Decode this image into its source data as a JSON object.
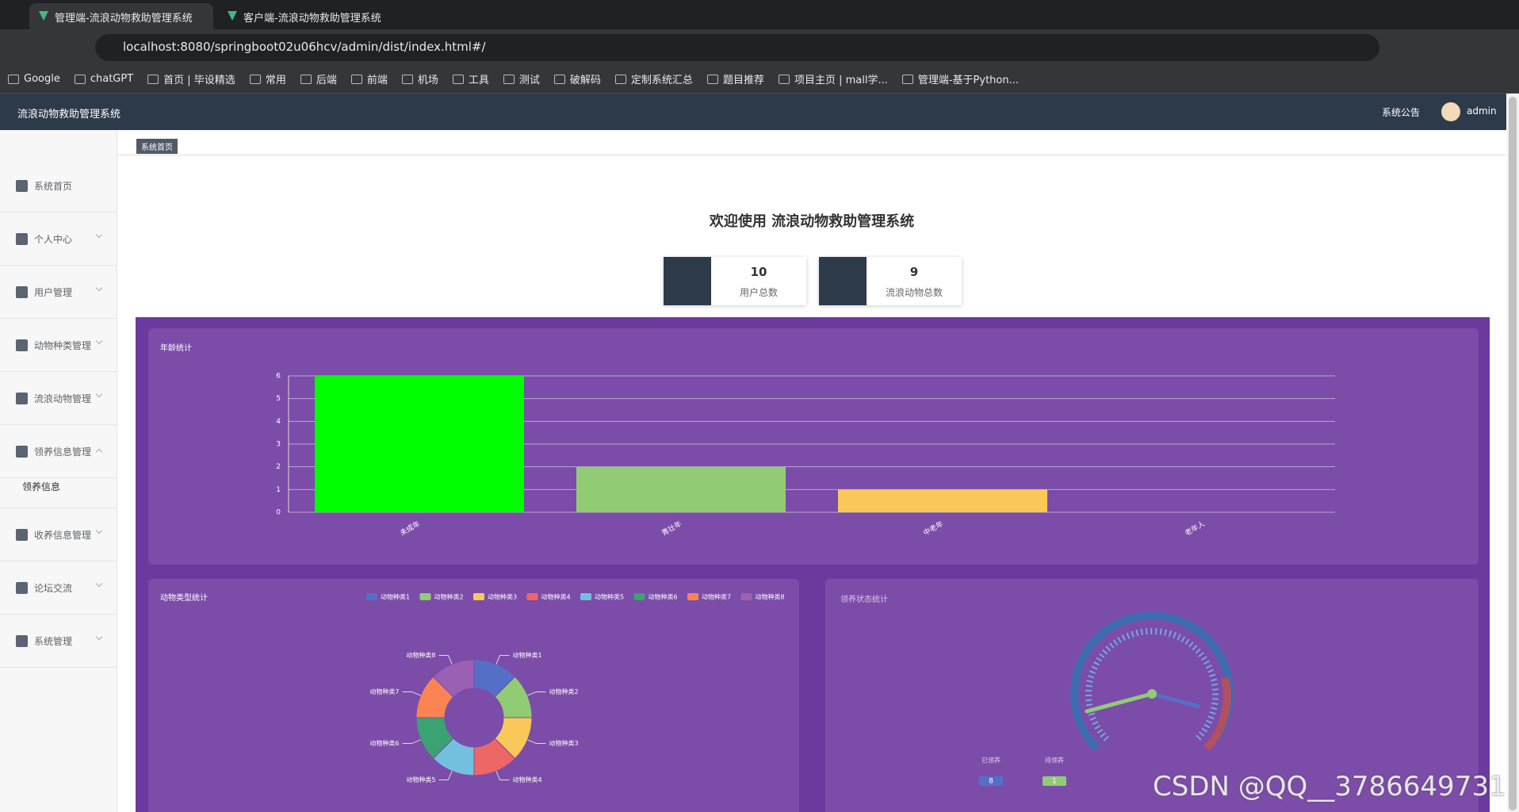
{
  "browser": {
    "tabs": [
      "管理端-流浪动物救助管理系统",
      "客户端-流浪动物救助管理系统"
    ],
    "url": "localhost:8080/springboot02u06hcv/admin/dist/index.html#/",
    "bookmarks": [
      "Google",
      "chatGPT",
      "首页 | 毕设精选",
      "常用",
      "后端",
      "前端",
      "机场",
      "工具",
      "测试",
      "破解码",
      "定制系统汇总",
      "题目推荐",
      "项目主页 | mall学...",
      "管理端-基于Python..."
    ]
  },
  "header": {
    "title": "流浪动物救助管理系统",
    "notice": "系统公告",
    "user": "admin"
  },
  "breadcrumb": "系统首页",
  "sidebar": {
    "items": [
      {
        "label": "系统首页"
      },
      {
        "label": "个人中心"
      },
      {
        "label": "用户管理"
      },
      {
        "label": "动物种类管理"
      },
      {
        "label": "流浪动物管理"
      },
      {
        "label": "领养信息管理",
        "children": [
          "领养信息"
        ]
      },
      {
        "label": "收养信息管理"
      },
      {
        "label": "论坛交流"
      },
      {
        "label": "系统管理"
      }
    ]
  },
  "welcome": "欢迎使用 流浪动物救助管理系统",
  "stats": [
    {
      "value": 10,
      "label": "用户总数"
    },
    {
      "value": 9,
      "label": "流浪动物总数"
    }
  ],
  "chart_data": [
    {
      "type": "bar",
      "title": "年龄统计",
      "categories": [
        "未成年",
        "青壮年",
        "中老年",
        "老年人"
      ],
      "values": [
        6,
        2,
        1,
        0
      ],
      "colors": [
        "#00ff00",
        "#91cc75",
        "#fac858",
        "#ee6666"
      ],
      "ylim": [
        0,
        6
      ],
      "yticks": [
        0,
        1,
        2,
        3,
        4,
        5,
        6
      ],
      "grid": true
    },
    {
      "type": "pie",
      "title": "动物类型统计",
      "categories": [
        "动物种类1",
        "动物种类2",
        "动物种类3",
        "动物种类4",
        "动物种类5",
        "动物种类6",
        "动物种类7",
        "动物种类8"
      ],
      "values": [
        1,
        1,
        1,
        1,
        1,
        1,
        1,
        1
      ],
      "colors": [
        "#5470c6",
        "#91cc75",
        "#fac858",
        "#ee6666",
        "#73c0de",
        "#3ba272",
        "#fc8452",
        "#9a60b4"
      ],
      "donut": true
    },
    {
      "type": "gauge",
      "title": "领养状态统计",
      "series": [
        {
          "name": "已领养",
          "color": "#5470c6",
          "values": [
            8
          ]
        },
        {
          "name": "待领养",
          "color": "#91cc75",
          "values": [
            1
          ]
        }
      ]
    }
  ],
  "watermark": "CSDN @QQ__3786649731"
}
